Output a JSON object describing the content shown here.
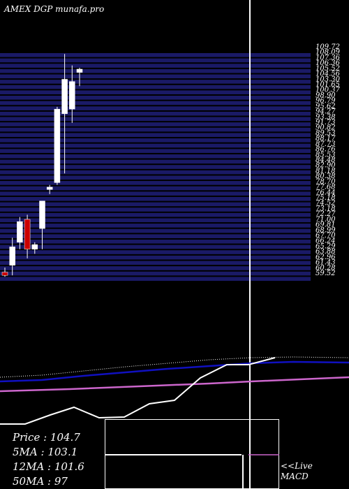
{
  "header": {
    "title": "AMEX  DGP munafa.pro"
  },
  "chart_data": {
    "type": "candlestick",
    "y_axis_labels": [
      "109.72",
      "108.09",
      "107.36",
      "106.36",
      "105.52",
      "104.56",
      "103.30",
      "101.65",
      "100.37",
      "98.90",
      "96.79",
      "95.62",
      "94.27",
      "93.38",
      "91.73",
      "90.82",
      "89.53",
      "88.17",
      "87.73",
      "86.76",
      "85.53",
      "84.48",
      "82.90",
      "81.18",
      "80.38",
      "78.70",
      "77.68",
      "76.44",
      "75.18",
      "74.52",
      "73.18",
      "72.27",
      "71.00",
      "69.81",
      "68.99",
      "67.70",
      "66.24",
      "65.29",
      "63.88",
      "62.96",
      "61.43",
      "60.28",
      "59.52"
    ],
    "candles": [
      {
        "open": 60.5,
        "high": 61.5,
        "low": 59.5,
        "close": 59.8
      },
      {
        "open": 62.0,
        "high": 68.0,
        "low": 59.8,
        "close": 66.0
      },
      {
        "open": 67.0,
        "high": 72.5,
        "low": 65.5,
        "close": 71.5
      },
      {
        "open": 72.0,
        "high": 73.0,
        "low": 63.5,
        "close": 65.5
      },
      {
        "open": 65.5,
        "high": 67.0,
        "low": 64.5,
        "close": 66.5
      },
      {
        "open": 70.0,
        "high": 76.0,
        "low": 65.5,
        "close": 76.0
      },
      {
        "open": 78.5,
        "high": 79.5,
        "low": 77.5,
        "close": 79.0
      },
      {
        "open": 80.0,
        "high": 96.5,
        "low": 79.5,
        "close": 96.0
      },
      {
        "open": 95.0,
        "high": 108.0,
        "low": 82.0,
        "close": 102.5
      },
      {
        "open": 96.0,
        "high": 105.5,
        "low": 93.0,
        "close": 102.0
      },
      {
        "open": 104.0,
        "high": 105.0,
        "low": 101.0,
        "close": 104.7
      }
    ],
    "stats": {
      "price_label": "Price   : 104.7",
      "ma5_label": "5MA : 103.1",
      "ma12_label": "12MA : 101.6",
      "ma50_label": "50MA : 97"
    },
    "macd_label_1": "<<Live",
    "macd_label_2": "MACD",
    "colors": {
      "up": "#ffffff",
      "down": "#cc0000",
      "band": "#1a1a66",
      "ma_blue": "#1010c0",
      "ma_pink": "#cc66cc",
      "line_white": "#ffffff"
    }
  }
}
